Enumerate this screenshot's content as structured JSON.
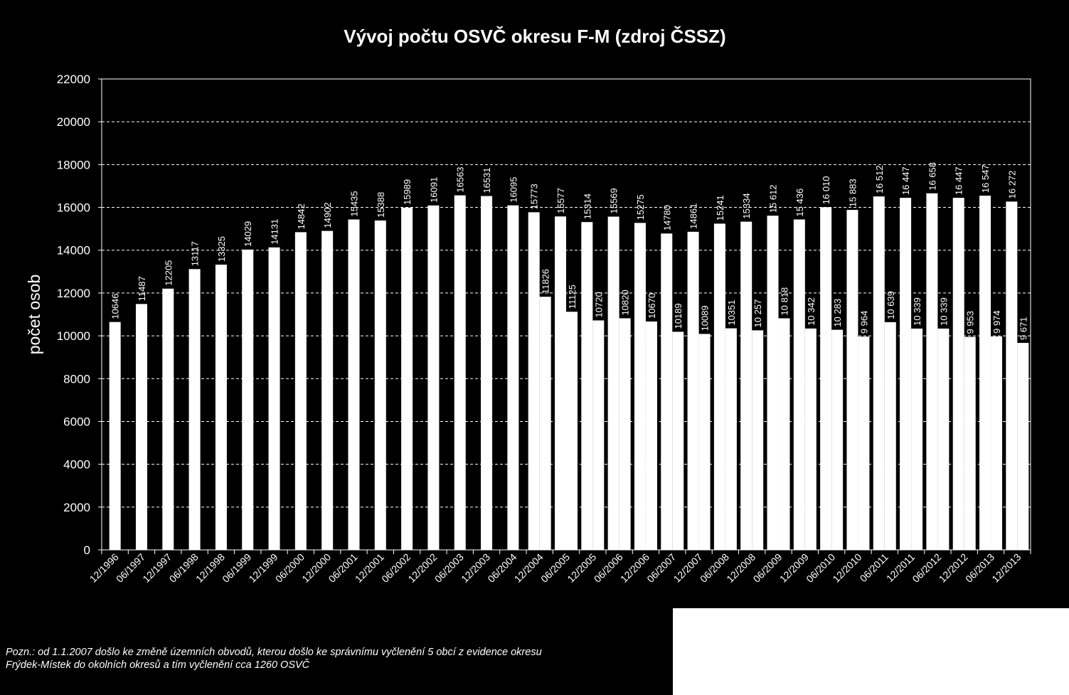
{
  "colors": {
    "background": "#000000",
    "bar_fill": "#ffffff",
    "text": "#ffffff",
    "gridline": "#ffffff",
    "blank_panel": "#ffffff"
  },
  "note": {
    "line1": "Pozn.: od 1.1.2007 došlo ke změně územních obvodů, kterou došlo ke správnímu vyčlenění 5 obcí z evidence okresu",
    "line2": "Frýdek-Místek do okolních okresů a tím vyčlenění cca 1260 OSVČ"
  },
  "chart_data": {
    "type": "bar",
    "title": "Vývoj počtu OSVČ okresu F-M (zdroj ČSSZ)",
    "xlabel": "",
    "ylabel": "počet osob",
    "ylim": [
      0,
      22000
    ],
    "yticks": [
      "0",
      "2000",
      "4000",
      "6000",
      "8000",
      "10000",
      "12000",
      "14000",
      "16000",
      "18000",
      "20000",
      "22000"
    ],
    "grid": "horizontal dashed",
    "legend": "none",
    "categories": [
      "12/1996",
      "06/1997",
      "12/1997",
      "06/1998",
      "12/1998",
      "06/1999",
      "12/1999",
      "06/2000",
      "12/2000",
      "06/2001",
      "12/2001",
      "06/2002",
      "12/2002",
      "06/2003",
      "12/2003",
      "06/2004",
      "12/2004",
      "06/2005",
      "12/2005",
      "06/2006",
      "12/2006",
      "06/2007",
      "12/2007",
      "06/2008",
      "12/2008",
      "06/2009",
      "12/2009",
      "06/2010",
      "12/2010",
      "06/2011",
      "12/2011",
      "06/2012",
      "12/2012",
      "06/2013",
      "12/2013"
    ],
    "series": [
      {
        "values": [
          null,
          null,
          null,
          null,
          null,
          null,
          null,
          null,
          null,
          null,
          null,
          null,
          null,
          null,
          null,
          null,
          15773,
          15577,
          15314,
          15569,
          15275,
          14780,
          14861,
          15241,
          15334,
          15612,
          15436,
          16010,
          15883,
          16512,
          16447,
          16658,
          16447,
          16547,
          16272
        ],
        "labels": [
          "",
          "",
          "",
          "",
          "",
          "",
          "",
          "",
          "",
          "",
          "",
          "",
          "",
          "",
          "",
          "",
          "15773",
          "15577",
          "15314",
          "15569",
          "15275",
          "14780",
          "14861",
          "15241",
          "15334",
          "15 612",
          "15 436",
          "16 010",
          "15 883",
          "16 512",
          "16 447",
          "16 658",
          "16 447",
          "16 547",
          "16 272"
        ]
      },
      {
        "values": [
          10646,
          11487,
          12205,
          13117,
          13325,
          14029,
          14131,
          14842,
          14902,
          15435,
          15388,
          15989,
          16091,
          16563,
          16531,
          16095,
          11826,
          11125,
          10720,
          10820,
          10670,
          10189,
          10089,
          10351,
          10257,
          10818,
          10342,
          10283,
          9964,
          10639,
          10339,
          10339,
          9953,
          9974,
          9671
        ],
        "labels": [
          "10646",
          "11487",
          "12205",
          "13117",
          "13325",
          "14029",
          "14131",
          "14842",
          "14902",
          "15435",
          "15388",
          "15989",
          "16091",
          "16563",
          "16531",
          "16095",
          "11826",
          "11125",
          "10720",
          "10820",
          "10670",
          "10189",
          "10089",
          "10351",
          "10 257",
          "10 818",
          "10 342",
          "10 283",
          "9 964",
          "10 639",
          "10 339",
          "10 339",
          "9 953",
          "9 974",
          "9 671"
        ]
      }
    ]
  }
}
